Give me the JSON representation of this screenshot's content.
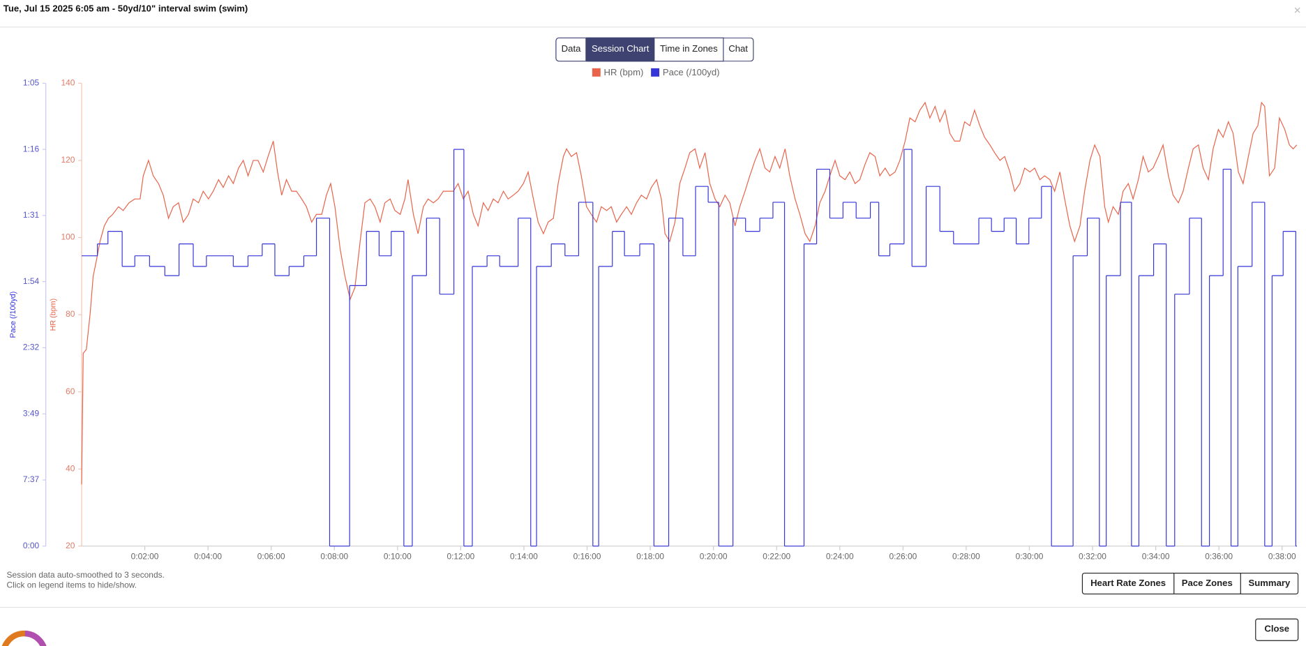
{
  "header": {
    "title": "Tue, Jul 15 2025 6:05 am - 50yd/10\" interval swim (swim)",
    "close": "×"
  },
  "tabs": {
    "items": [
      "Data",
      "Session Chart",
      "Time in Zones",
      "Chat"
    ],
    "active": 1
  },
  "chart_data": {
    "type": "line",
    "ylabel": "HR (bpm)",
    "y2label": "Pace (/100yd)",
    "grid": false,
    "legend": "top",
    "xlim": [
      0,
      2308
    ],
    "xticks": [
      {
        "value": 120,
        "label": "0:02:00"
      },
      {
        "value": 240,
        "label": "0:04:00"
      },
      {
        "value": 360,
        "label": "0:06:00"
      },
      {
        "value": 480,
        "label": "0:08:00"
      },
      {
        "value": 600,
        "label": "0:10:00"
      },
      {
        "value": 720,
        "label": "0:12:00"
      },
      {
        "value": 840,
        "label": "0:14:00"
      },
      {
        "value": 960,
        "label": "0:16:00"
      },
      {
        "value": 1080,
        "label": "0:18:00"
      },
      {
        "value": 1200,
        "label": "0:20:00"
      },
      {
        "value": 1320,
        "label": "0:22:00"
      },
      {
        "value": 1440,
        "label": "0:24:00"
      },
      {
        "value": 1560,
        "label": "0:26:00"
      },
      {
        "value": 1680,
        "label": "0:28:00"
      },
      {
        "value": 1800,
        "label": "0:30:00"
      },
      {
        "value": 1920,
        "label": "0:32:00"
      },
      {
        "value": 2040,
        "label": "0:34:00"
      },
      {
        "value": 2160,
        "label": "0:36:00"
      },
      {
        "value": 2280,
        "label": "0:38:00"
      }
    ],
    "ylim": [
      20,
      140
    ],
    "yticks": [
      20,
      40,
      60,
      80,
      100,
      120,
      140
    ],
    "y2lim": [
      0,
      7
    ],
    "y2ticks": [
      {
        "value": 0,
        "label": "0:00"
      },
      {
        "value": 1,
        "label": "7:37"
      },
      {
        "value": 2,
        "label": "3:49"
      },
      {
        "value": 3,
        "label": "2:32"
      },
      {
        "value": 4,
        "label": "1:54"
      },
      {
        "value": 5,
        "label": "1:31"
      },
      {
        "value": 6,
        "label": "1:16"
      },
      {
        "value": 7,
        "label": "1:05"
      }
    ],
    "series": [
      {
        "name": "HR (bpm)",
        "color": "#e8634a",
        "axis": "y",
        "x": [
          0,
          3,
          9,
          16,
          22,
          28,
          35,
          43,
          51,
          59,
          70,
          79,
          90,
          101,
          111,
          117,
          127,
          136,
          146,
          155,
          165,
          174,
          184,
          193,
          203,
          212,
          222,
          231,
          241,
          250,
          260,
          269,
          279,
          288,
          298,
          307,
          316,
          326,
          335,
          345,
          354,
          364,
          372,
          380,
          389,
          399,
          408,
          418,
          427,
          437,
          446,
          456,
          465,
          473,
          481,
          491,
          500,
          510,
          519,
          529,
          538,
          548,
          557,
          567,
          576,
          586,
          595,
          605,
          614,
          620,
          630,
          639,
          649,
          658,
          668,
          677,
          687,
          696,
          706,
          715,
          725,
          734,
          744,
          753,
          763,
          772,
          782,
          791,
          801,
          810,
          820,
          829,
          839,
          848,
          858,
          867,
          877,
          886,
          896,
          905,
          915,
          921,
          930,
          940,
          949,
          959,
          968,
          978,
          987,
          997,
          1006,
          1016,
          1025,
          1035,
          1044,
          1054,
          1063,
          1073,
          1082,
          1092,
          1101,
          1108,
          1117,
          1127,
          1136,
          1146,
          1155,
          1165,
          1174,
          1184,
          1193,
          1203,
          1212,
          1222,
          1231,
          1241,
          1250,
          1260,
          1269,
          1279,
          1288,
          1298,
          1307,
          1317,
          1326,
          1336,
          1345,
          1355,
          1364,
          1374,
          1383,
          1393,
          1402,
          1412,
          1421,
          1431,
          1440,
          1450,
          1459,
          1469,
          1478,
          1488,
          1497,
          1507,
          1516,
          1526,
          1535,
          1545,
          1554,
          1564,
          1573,
          1583,
          1592,
          1602,
          1611,
          1621,
          1630,
          1640,
          1649,
          1658,
          1668,
          1677,
          1687,
          1696,
          1706,
          1715,
          1725,
          1734,
          1744,
          1753,
          1763,
          1772,
          1782,
          1791,
          1801,
          1810,
          1820,
          1829,
          1839,
          1848,
          1858,
          1867,
          1877,
          1886,
          1896,
          1905,
          1915,
          1924,
          1934,
          1943,
          1950,
          1959,
          1969,
          1978,
          1988,
          1997,
          2007,
          2016,
          2026,
          2035,
          2045,
          2054,
          2064,
          2073,
          2083,
          2092,
          2102,
          2111,
          2121,
          2130,
          2140,
          2149,
          2159,
          2168,
          2178,
          2187,
          2197,
          2206,
          2216,
          2225,
          2234,
          2241,
          2247,
          2256,
          2266,
          2275,
          2285,
          2294,
          2301,
          2308
        ],
        "values": [
          36,
          70,
          71,
          80,
          90,
          94,
          99,
          103,
          105,
          106,
          108,
          107,
          109,
          110,
          110,
          116,
          120,
          116,
          114,
          111,
          105,
          108,
          109,
          104,
          106,
          110,
          109,
          112,
          110,
          112,
          115,
          113,
          116,
          114,
          118,
          120,
          116,
          120,
          120,
          117,
          121,
          125,
          117,
          111,
          115,
          112,
          112,
          110,
          108,
          104,
          106,
          106,
          111,
          114,
          108,
          97,
          90,
          84,
          87,
          99,
          109,
          110,
          108,
          104,
          109,
          110,
          107,
          106,
          110,
          115,
          106,
          101,
          108,
          110,
          109,
          110,
          112,
          112,
          112,
          114,
          110,
          112,
          106,
          103,
          109,
          107,
          110,
          109,
          112,
          110,
          111,
          112,
          114,
          117,
          110,
          104,
          101,
          104,
          105,
          114,
          121,
          123,
          121,
          122,
          116,
          108,
          106,
          104,
          108,
          107,
          108,
          104,
          106,
          108,
          106,
          109,
          111,
          110,
          113,
          115,
          110,
          101,
          99,
          104,
          114,
          118,
          122,
          123,
          118,
          122,
          114,
          110,
          108,
          111,
          109,
          103,
          108,
          112,
          116,
          120,
          123,
          118,
          117,
          121,
          118,
          123,
          116,
          110,
          106,
          101,
          99,
          103,
          109,
          112,
          116,
          120,
          116,
          115,
          117,
          114,
          115,
          119,
          122,
          121,
          116,
          118,
          116,
          117,
          120,
          125,
          131,
          130,
          133,
          135,
          131,
          134,
          130,
          133,
          127,
          125,
          125,
          130,
          129,
          133,
          129,
          126,
          124,
          122,
          120,
          121,
          117,
          112,
          114,
          118,
          117,
          118,
          115,
          116,
          115,
          112,
          117,
          110,
          103,
          99,
          103,
          112,
          120,
          124,
          121,
          108,
          104,
          108,
          106,
          112,
          114,
          110,
          115,
          121,
          117,
          118,
          121,
          124,
          116,
          111,
          109,
          112,
          118,
          123,
          124,
          118,
          115,
          123,
          128,
          126,
          130,
          127,
          117,
          114,
          121,
          127,
          129,
          135,
          134,
          116,
          118,
          131,
          128,
          124,
          123,
          124
        ]
      },
      {
        "name": "Pace (/100yd)",
        "color": "#3535d8",
        "axis": "y2",
        "step": "post",
        "x": [
          0,
          30,
          50,
          77,
          101,
          129,
          158,
          185,
          212,
          237,
          288,
          316,
          343,
          367,
          394,
          422,
          446,
          471,
          509,
          541,
          565,
          588,
          612,
          628,
          655,
          680,
          707,
          726,
          742,
          770,
          794,
          829,
          853,
          864,
          892,
          918,
          944,
          971,
          982,
          1008,
          1031,
          1060,
          1087,
          1115,
          1142,
          1166,
          1190,
          1210,
          1237,
          1261,
          1288,
          1313,
          1335,
          1372,
          1396,
          1421,
          1446,
          1471,
          1498,
          1514,
          1535,
          1562,
          1577,
          1604,
          1630,
          1656,
          1704,
          1728,
          1752,
          1775,
          1799,
          1823,
          1842,
          1883,
          1910,
          1933,
          1946,
          1973,
          1994,
          2008,
          2036,
          2060,
          2076,
          2104,
          2127,
          2142,
          2168,
          2183,
          2196,
          2223,
          2247,
          2261,
          2282,
          2306
        ],
        "values": [
          4.39,
          4.57,
          4.76,
          4.23,
          4.39,
          4.23,
          4.09,
          4.57,
          4.23,
          4.39,
          4.23,
          4.39,
          4.57,
          4.09,
          4.23,
          4.39,
          4.96,
          0,
          3.94,
          4.76,
          4.39,
          4.76,
          0,
          4.09,
          4.96,
          3.81,
          6,
          0,
          4.23,
          4.39,
          4.23,
          4.96,
          0,
          4.23,
          4.57,
          4.39,
          5.2,
          0,
          4.23,
          4.76,
          4.39,
          4.57,
          0,
          4.96,
          4.39,
          5.44,
          5.2,
          0,
          4.96,
          4.76,
          4.96,
          5.2,
          0,
          4.57,
          5.7,
          4.96,
          5.2,
          4.96,
          5.2,
          4.39,
          4.57,
          6,
          4.23,
          5.44,
          4.76,
          4.57,
          4.96,
          4.76,
          4.96,
          4.57,
          4.96,
          5.44,
          0,
          4.39,
          4.96,
          0,
          4.09,
          5.2,
          0,
          4.09,
          4.57,
          0,
          3.81,
          4.96,
          0,
          4.09,
          5.7,
          0,
          4.23,
          5.2,
          0,
          4.09,
          4.76,
          0
        ]
      }
    ]
  },
  "notes": [
    "Session data auto-smoothed to 3 seconds.",
    "Click on legend items to hide/show."
  ],
  "buttons": [
    "Heart Rate Zones",
    "Pace Zones",
    "Summary"
  ],
  "footer": {
    "close": "Close"
  }
}
